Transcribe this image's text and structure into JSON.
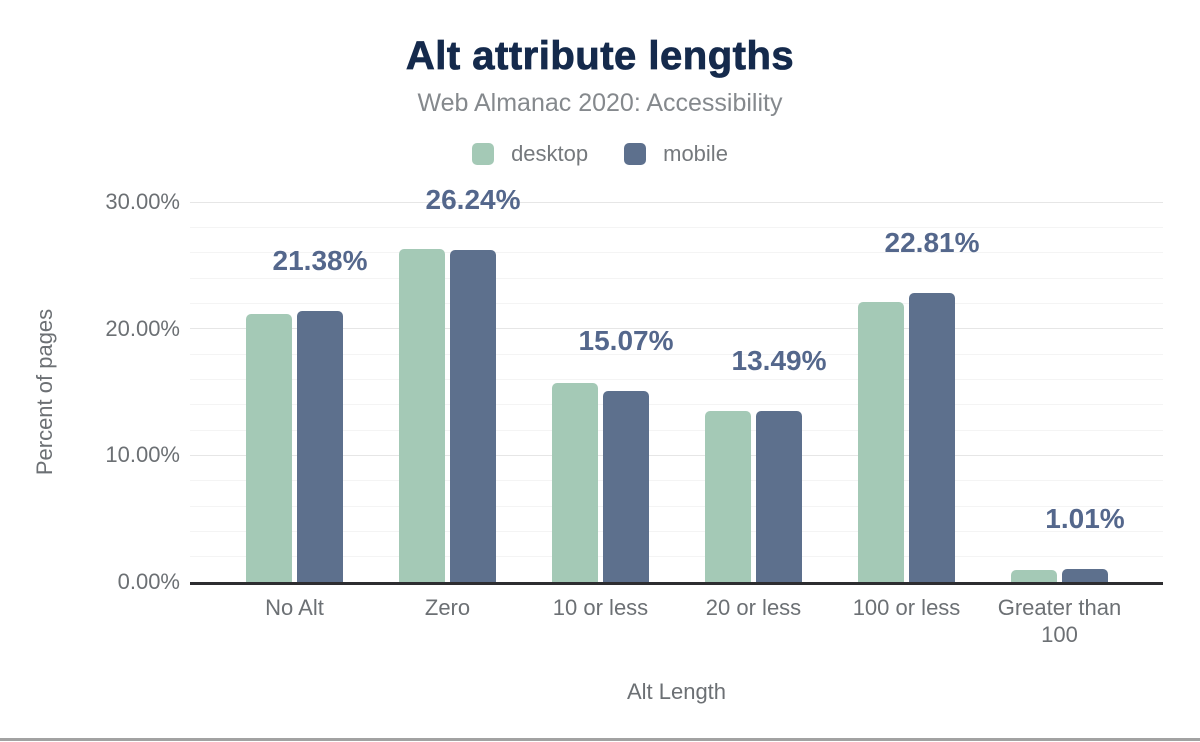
{
  "chart_data": {
    "type": "bar",
    "title": "Alt attribute lengths",
    "subtitle": "Web Almanac 2020: Accessibility",
    "xlabel": "Alt Length",
    "ylabel": "Percent of pages",
    "categories": [
      "No Alt",
      "Zero",
      "10 or less",
      "20 or less",
      "100 or less",
      "Greater than 100"
    ],
    "series": [
      {
        "name": "desktop",
        "color": "#a4c9b6",
        "values": [
          21.17,
          26.28,
          15.68,
          13.53,
          22.12,
          0.95
        ]
      },
      {
        "name": "mobile",
        "color": "#5d708d",
        "values": [
          21.38,
          26.24,
          15.07,
          13.49,
          22.81,
          1.01
        ]
      }
    ],
    "data_labels": [
      "21.38%",
      "26.24%",
      "15.07%",
      "13.49%",
      "22.81%",
      "1.01%"
    ],
    "data_label_anchor_series": "mobile",
    "yticks": [
      {
        "label": "0.00%",
        "value": 0
      },
      {
        "label": "10.00%",
        "value": 10
      },
      {
        "label": "20.00%",
        "value": 20
      },
      {
        "label": "30.00%",
        "value": 30
      }
    ],
    "ylim": [
      0,
      30
    ],
    "grid": {
      "major_interval": 10,
      "minor_interval": 2,
      "minor_shown": true
    },
    "legend_position": "top"
  },
  "legend": [
    {
      "label": "desktop",
      "color": "#a4c9b6"
    },
    {
      "label": "mobile",
      "color": "#5d708d"
    }
  ],
  "colors": {
    "title": "#152a4c",
    "subtitle": "#85898d",
    "axis_text": "#6c7074",
    "data_label": "#54678c",
    "axis_line": "#2d2d30",
    "grid_major": "#e6e6e6",
    "grid_minor": "#f4f4f4",
    "legend_text": "#75797d",
    "desktop_bar": "#a4c9b6",
    "mobile_bar": "#5d708d",
    "bottom_border": "#a2a2a2"
  }
}
